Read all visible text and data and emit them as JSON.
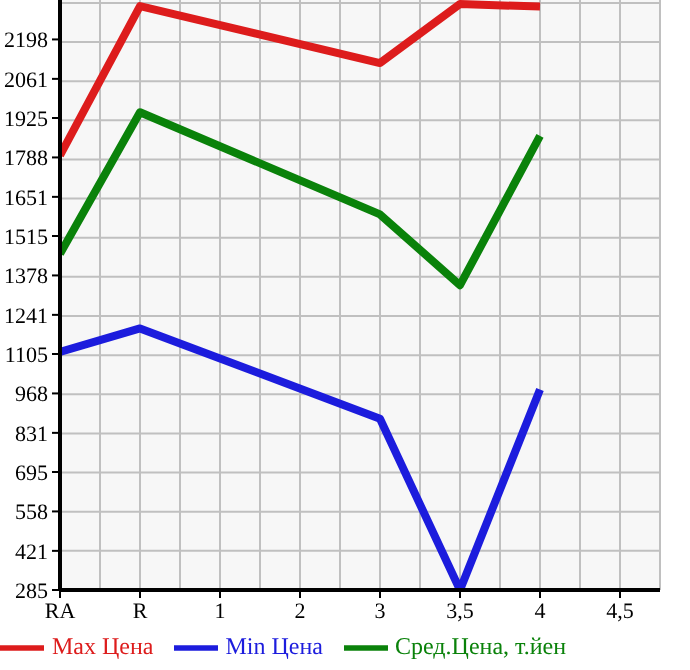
{
  "chart_data": {
    "type": "line",
    "categories": [
      "RA",
      "R",
      "1",
      "2",
      "3",
      "3,5",
      "4",
      "4,5"
    ],
    "series": [
      {
        "name": "Max Цена",
        "color": "#dd1c1c",
        "values": [
          1795,
          2314,
          null,
          null,
          2116,
          2321,
          2312,
          null
        ]
      },
      {
        "name": "Min Цена",
        "color": "#1c1cdd",
        "values": [
          1112,
          1194,
          null,
          null,
          880,
          285,
          982,
          null
        ]
      },
      {
        "name": "Сред.Цена, т.йен",
        "color": "#0a820a",
        "values": [
          1453,
          1945,
          null,
          null,
          1590,
          1344,
          1863,
          null
        ]
      }
    ],
    "ylim": [
      285,
      2335
    ],
    "yticks": [
      285,
      421,
      558,
      695,
      831,
      968,
      1105,
      1241,
      1378,
      1515,
      1651,
      1788,
      1925,
      2061,
      2198
    ],
    "grid": true,
    "legend": "bottom",
    "marker": "none",
    "line_style": "solid"
  }
}
